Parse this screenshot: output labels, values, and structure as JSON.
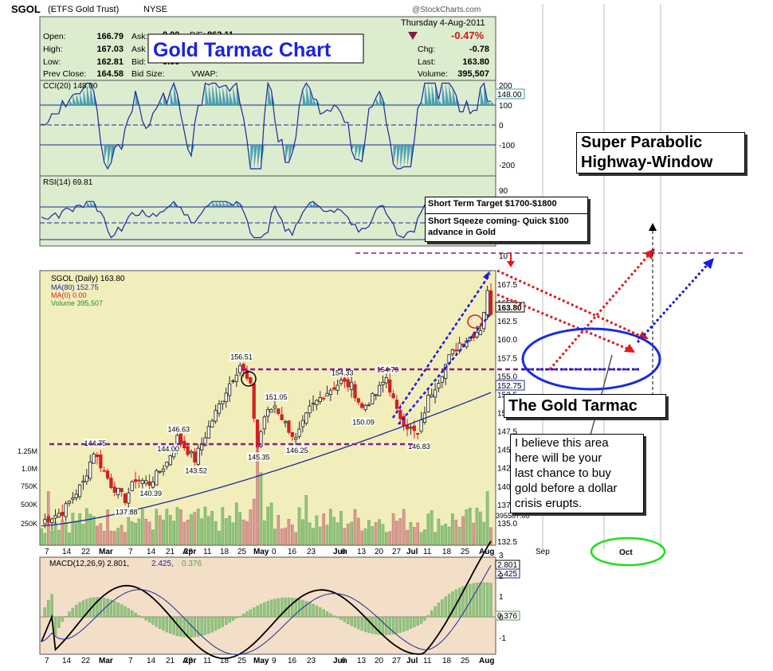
{
  "header": {
    "symbol": "SGOL",
    "name": "(ETFS Gold Trust)",
    "exchange": "NYSE",
    "source": "@StockCharts.com",
    "date": "Thursday   4-Aug-2011",
    "pct_change": "-0.47%",
    "quote_labels": [
      "Open:",
      "High:",
      "Low:",
      "Prev Close:"
    ],
    "quote_values": [
      "166.79",
      "167.03",
      "162.81",
      "164.58"
    ],
    "mid_labels": [
      "Ask:",
      "Ask",
      "Bid:",
      "Bid Size:"
    ],
    "mid_values": [
      "0.00",
      "",
      "0.00",
      ""
    ],
    "pe_label": "P/E:",
    "pe_value": "862.11",
    "vwap_label": "VWAP:",
    "right_labels": [
      "Chg:",
      "Last:",
      "Volume:"
    ],
    "right_values": [
      "-0.78",
      "163.80",
      "395,507"
    ]
  },
  "title_box": "Gold Tarmac Chart",
  "annotations": {
    "target": "Short Term Target $1700-$1800",
    "squeeze_line1": "Short Sqeeze coming- Quick $100",
    "squeeze_line2": "advance in Gold",
    "highway_line1": "Super Parabolic",
    "highway_line2": "Highway-Window",
    "tarmac": "The Gold Tarmac",
    "believe_lines": [
      "I believe this area",
      "here will be your",
      "last chance to buy",
      "gold before a dollar",
      "crisis erupts."
    ]
  },
  "cci": {
    "legend": "CCI(20) 148.00",
    "last": "148.00",
    "ticks": [
      "200",
      "100",
      "0",
      "-100",
      "-200"
    ]
  },
  "rsi": {
    "legend": "RSI(14) 69.81",
    "ticks": [
      "90",
      "70",
      "50",
      "30",
      "10"
    ]
  },
  "price": {
    "legend_title": "SGOL (Daily) 163.80",
    "legend_ma80": "MA(80) 152.75",
    "legend_ma0": "MA(0) 0.00",
    "legend_volume": "Volume 395,507",
    "ticks": [
      "167.5",
      "165.0",
      "162.5",
      "160.0",
      "157.5",
      "155.0",
      "152.5",
      "150.0",
      "147.5",
      "145.0",
      "142.5",
      "140.0",
      "137.5",
      "135.0",
      "132.5"
    ],
    "last_box": "163.80",
    "ma_box": "152.75",
    "volume_box": "395507.00",
    "volume_ticks": [
      "1.25M",
      "1.0M",
      "750K",
      "500K",
      "250K"
    ],
    "peak_labels": [
      "144.75",
      "144.00",
      "143.52",
      "140.39",
      "137.88",
      "146.63",
      "156.51",
      "151.05",
      "145.35",
      "146.25",
      "154.33",
      "154.79",
      "150.09",
      "146.83"
    ]
  },
  "macd": {
    "legend_main": "MACD(12,26,9) 2.801,",
    "legend_signal": "2.425,",
    "legend_hist": "0.376",
    "macd_box": "2.801",
    "signal_box": "2.425",
    "hist_box": "0.376",
    "ticks": [
      "3",
      "2",
      "1",
      "0",
      "-1"
    ]
  },
  "x_axis": {
    "labels": [
      "7",
      "14",
      "22",
      "Mar",
      "7",
      "14",
      "21",
      "28",
      "Apr",
      "11",
      "18",
      "25",
      "May",
      "9",
      "16",
      "23",
      "Jun",
      "6",
      "13",
      "20",
      "27",
      "Jul",
      "11",
      "18",
      "25",
      "Aug"
    ],
    "mid_labels": [
      "7",
      "14",
      "22",
      "Mar",
      "7",
      "14",
      "21",
      "28",
      "Apr",
      "11",
      "18",
      "25",
      "May",
      "0",
      "16",
      "23",
      "Jun",
      "6",
      "13",
      "20",
      "27",
      "Jul",
      "11",
      "18",
      "25",
      "Aug"
    ],
    "future_labels": [
      "Sep",
      "Oct"
    ]
  },
  "colors": {
    "up": "#2b2b2b",
    "down": "#d42020",
    "ma80": "#1a2a9a",
    "cci_fill": "#3c9ab0",
    "rsi_fill": "#3c9ab0",
    "indicator_bg": "#dceccf",
    "price_bg": "#f2eebb",
    "macd_bg": "#f3dec8",
    "volume_up": "#8fc47f",
    "volume_down": "#d99a94",
    "purple": "#8a1a8a",
    "blue_arrow": "#1a1ae0",
    "red_arrow": "#e01a1a",
    "ellipse_blue": "#1a2ae0",
    "ellipse_green": "#22dd22",
    "title_blue": "#1a22e0"
  },
  "chart_data": {
    "type": "candlestick",
    "series": [
      {
        "name": "SGOL (Daily)",
        "last": 163.8
      },
      {
        "name": "MA(80)",
        "last": 152.75
      },
      {
        "name": "Volume",
        "last": 395507
      },
      {
        "name": "CCI(20)",
        "last": 148.0
      },
      {
        "name": "RSI(14)",
        "last": 69.81
      },
      {
        "name": "MACD(12,26,9)",
        "values": [
          2.801,
          2.425,
          0.376
        ]
      }
    ],
    "annotated_levels": [
      144.75,
      144.0,
      143.52,
      140.39,
      137.88,
      146.63,
      156.51,
      151.05,
      145.35,
      146.25,
      154.33,
      154.79,
      150.09,
      146.83
    ],
    "price_ylim": [
      132.5,
      167.5
    ]
  }
}
